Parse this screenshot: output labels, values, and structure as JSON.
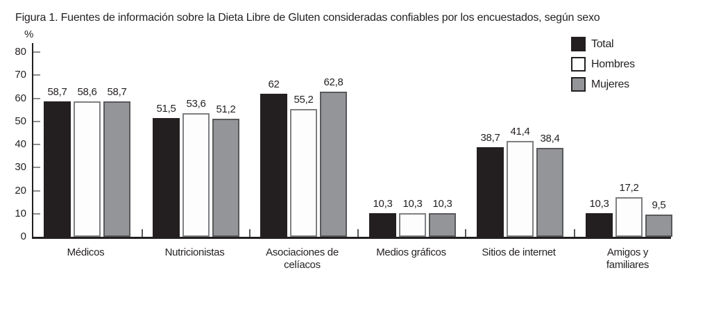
{
  "figure": {
    "title": "Figura 1. Fuentes de información sobre la Dieta Libre de Gluten consideradas confiables por los encuestados, según sexo"
  },
  "chart_data": {
    "type": "bar",
    "title": "Figura 1. Fuentes de información sobre la Dieta Libre de Gluten consideradas confiables por los encuestados, según sexo",
    "xlabel": "",
    "ylabel": "%",
    "ylim": [
      0,
      80
    ],
    "yticks": [
      0,
      10,
      20,
      30,
      40,
      50,
      60,
      70,
      80
    ],
    "grid": false,
    "legend_position": "top-right",
    "categories": [
      "Médicos",
      "Nutricionistas",
      "Asociaciones de celíacos",
      "Medios gráficos",
      "Sitios de internet",
      "Amigos y familiares"
    ],
    "category_lines": [
      [
        "Médicos"
      ],
      [
        "Nutricionistas"
      ],
      [
        "Asociaciones de",
        "celíacos"
      ],
      [
        "Medios gráficos"
      ],
      [
        "Sitios de internet"
      ],
      [
        "Amigos y",
        "familiares"
      ]
    ],
    "series": [
      {
        "name": "Total",
        "fill": "#231f20",
        "border": "#231f20",
        "values": [
          58.7,
          51.5,
          62,
          10.3,
          38.7,
          10.3
        ],
        "labels": [
          "58,7",
          "51,5",
          "62",
          "10,3",
          "38,7",
          "10,3"
        ]
      },
      {
        "name": "Hombres",
        "fill": "#fdfdfd",
        "border": "#7d7f82",
        "values": [
          58.6,
          53.6,
          55.2,
          10.3,
          41.4,
          17.2
        ],
        "labels": [
          "58,6",
          "53,6",
          "55,2",
          "10,3",
          "41,4",
          "17,2"
        ]
      },
      {
        "name": "Mujeres",
        "fill": "#939598",
        "border": "#58595b",
        "values": [
          58.7,
          51.2,
          62.8,
          10.3,
          38.4,
          9.5
        ],
        "labels": [
          "58,7",
          "51,2",
          "62,8",
          "10,3",
          "38,4",
          "9,5"
        ]
      }
    ]
  }
}
